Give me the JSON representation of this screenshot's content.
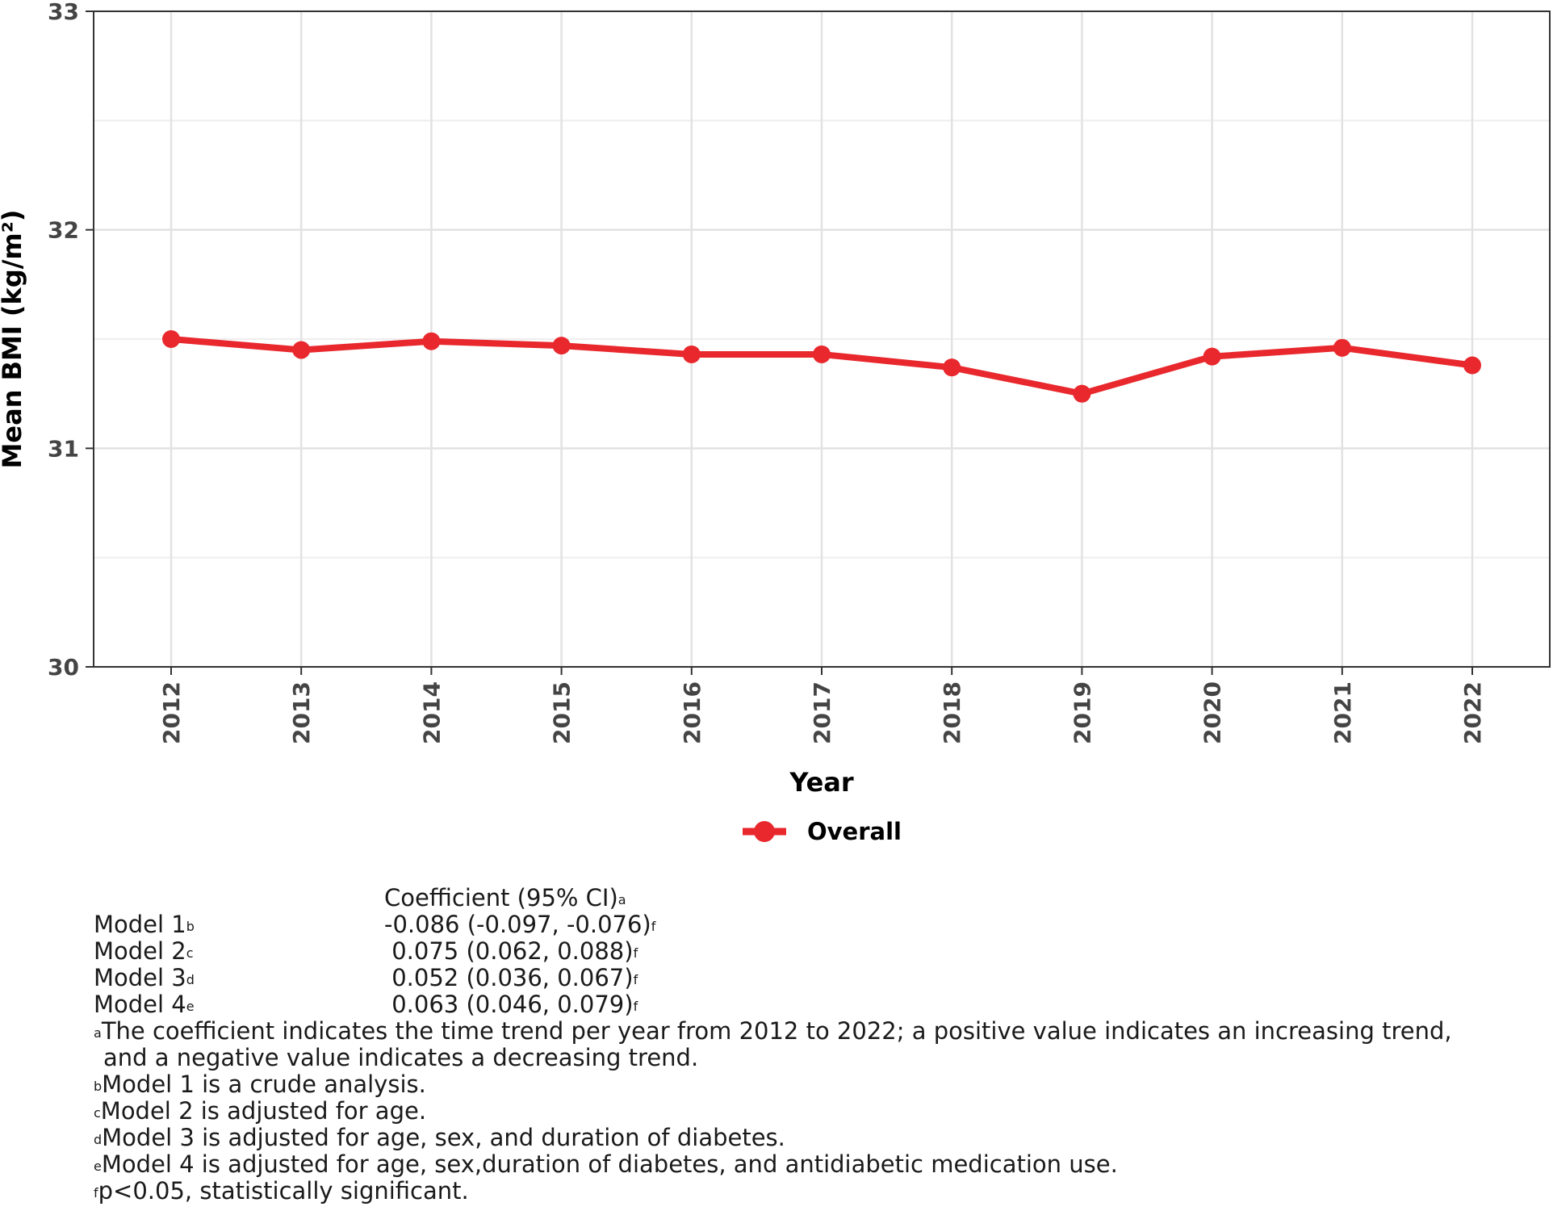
{
  "chart_data": {
    "type": "line",
    "title": "",
    "xlabel": "Year",
    "ylabel": "Mean BMI (kg/m²)",
    "x": [
      "2012",
      "2013",
      "2014",
      "2015",
      "2016",
      "2017",
      "2018",
      "2019",
      "2020",
      "2021",
      "2022"
    ],
    "series": [
      {
        "name": "Overall",
        "color": "#e8282d",
        "values": [
          31.5,
          31.45,
          31.49,
          31.47,
          31.43,
          31.43,
          31.37,
          31.25,
          31.42,
          31.46,
          31.38
        ]
      }
    ],
    "ylim": [
      30,
      33
    ],
    "yticks": [
      "30",
      "31",
      "32",
      "33"
    ],
    "grid": true,
    "legend_position": "bottom"
  },
  "table": {
    "header": "Coefficient (95% CI)",
    "header_sup": "a",
    "rows": [
      {
        "label": "Model 1",
        "sup": "b",
        "value": "-0.086 (-0.097, -0.076)",
        "value_sup": "f"
      },
      {
        "label": "Model 2",
        "sup": "c",
        "value": " 0.075 (0.062, 0.088)",
        "value_sup": "f"
      },
      {
        "label": "Model 3",
        "sup": "d",
        "value": " 0.052 (0.036, 0.067)",
        "value_sup": "f"
      },
      {
        "label": "Model 4",
        "sup": "e",
        "value": " 0.063 (0.046, 0.079)",
        "value_sup": "f"
      }
    ]
  },
  "footnotes": [
    {
      "sup": "a",
      "text": "The coefficient indicates the time trend per year from 2012 to 2022; a positive value indicates an increasing trend,"
    },
    {
      "sup": "",
      "text": "and a negative value indicates a decreasing trend."
    },
    {
      "sup": "b",
      "text": "Model 1 is a crude analysis."
    },
    {
      "sup": "c",
      "text": "Model 2 is adjusted for age."
    },
    {
      "sup": "d",
      "text": "Model 3 is adjusted for age, sex, and duration of diabetes."
    },
    {
      "sup": "e",
      "text": "Model 4 is adjusted for age, sex,duration of diabetes, and antidiabetic medication use."
    },
    {
      "sup": "f",
      "text": "p<0.05, statistically significant."
    }
  ]
}
